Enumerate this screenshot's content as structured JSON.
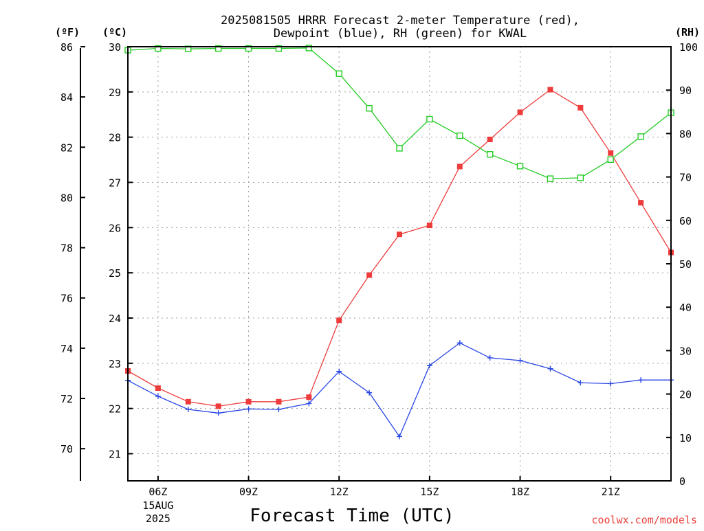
{
  "chart_data": {
    "type": "line",
    "title_lines": [
      "2025081505 HRRR Forecast 2-meter Temperature (red),",
      "Dewpoint (blue), RH (green) for KWAL"
    ],
    "xlabel": "Forecast Time (UTC)",
    "credit": "coolwx.com/models",
    "x_hours": [
      5,
      6,
      7,
      8,
      9,
      10,
      11,
      12,
      13,
      14,
      15,
      16,
      17,
      18,
      19,
      20,
      21,
      22,
      23
    ],
    "x_range": [
      5,
      23
    ],
    "x_ticks": [
      {
        "hour": 6,
        "label": "06Z",
        "sub1": "15AUG",
        "sub2": "2025"
      },
      {
        "hour": 9,
        "label": "09Z",
        "sub1": "",
        "sub2": ""
      },
      {
        "hour": 12,
        "label": "12Z",
        "sub1": "",
        "sub2": ""
      },
      {
        "hour": 15,
        "label": "15Z",
        "sub1": "",
        "sub2": ""
      },
      {
        "hour": 18,
        "label": "18Z",
        "sub1": "",
        "sub2": ""
      },
      {
        "hour": 21,
        "label": "21Z",
        "sub1": "",
        "sub2": ""
      }
    ],
    "left_axis_c": {
      "unit": "(ºC)",
      "range": [
        20.4,
        30
      ],
      "ticks": [
        21,
        22,
        23,
        24,
        25,
        26,
        27,
        28,
        29,
        30
      ]
    },
    "left_axis_f": {
      "unit": "(ºF)",
      "range": [
        68.72,
        86
      ],
      "ticks": [
        70,
        72,
        74,
        76,
        78,
        80,
        82,
        84,
        86
      ]
    },
    "right_axis_rh": {
      "unit": "(RH)",
      "range": [
        0,
        100
      ],
      "ticks": [
        0,
        10,
        20,
        30,
        40,
        50,
        60,
        70,
        80,
        90,
        100
      ]
    },
    "grid": true,
    "series": [
      {
        "key": "temperature",
        "axis": "c",
        "color": "#ee3b3b",
        "marker": "filled-square",
        "values": [
          22.83,
          22.45,
          22.15,
          22.05,
          22.15,
          22.15,
          22.25,
          23.95,
          24.95,
          25.85,
          26.05,
          27.35,
          27.95,
          28.55,
          29.05,
          28.65,
          27.65,
          26.55,
          25.45
        ]
      },
      {
        "key": "dewpoint",
        "axis": "c",
        "color": "#2846e6",
        "marker": "plus",
        "values": [
          22.62,
          22.27,
          21.98,
          21.9,
          21.99,
          21.98,
          22.11,
          22.82,
          22.35,
          21.38,
          22.95,
          23.45,
          23.12,
          23.06,
          22.88,
          22.57,
          22.55,
          22.63,
          22.63
        ]
      },
      {
        "key": "rh",
        "axis": "rh",
        "color": "#22cc22",
        "marker": "open-square",
        "values": [
          99.2,
          99.6,
          99.5,
          99.6,
          99.6,
          99.6,
          99.7,
          93.8,
          85.8,
          76.6,
          83.3,
          79.5,
          75.2,
          72.5,
          69.6,
          69.8,
          74.0,
          79.3,
          84.8
        ]
      }
    ]
  }
}
